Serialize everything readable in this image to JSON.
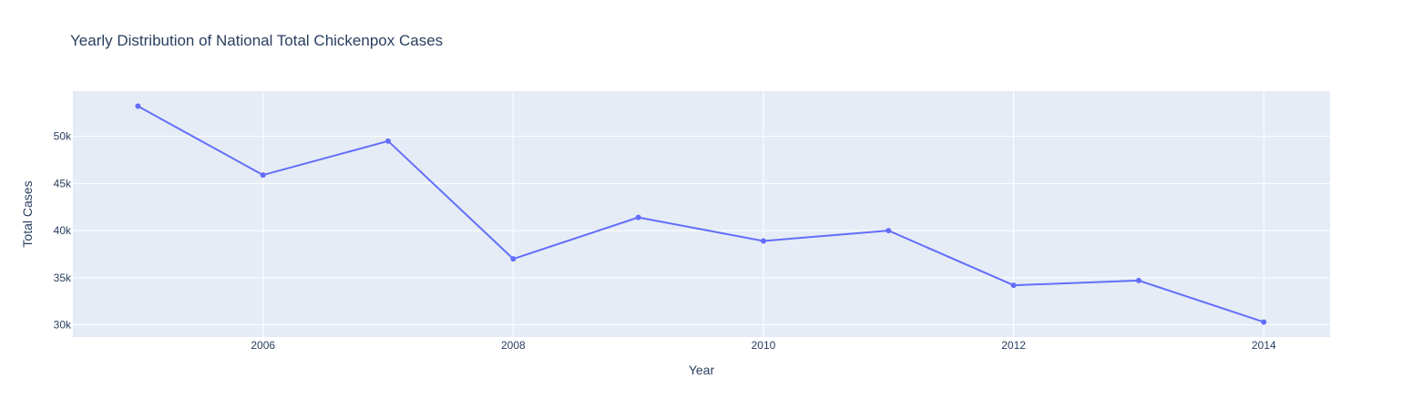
{
  "chart_data": {
    "type": "line",
    "title": "Yearly Distribution of National Total Chickenpox Cases",
    "xlabel": "Year",
    "ylabel": "Total Cases",
    "x": [
      2005,
      2006,
      2007,
      2008,
      2009,
      2010,
      2011,
      2012,
      2013,
      2014
    ],
    "series": [
      {
        "values": [
          53200,
          45900,
          49500,
          37000,
          41400,
          38900,
          40000,
          34200,
          34700,
          30300
        ]
      }
    ],
    "xlim": [
      2004.48,
      2014.53
    ],
    "ylim": [
      28700,
      54800
    ],
    "xticks": [
      2006,
      2008,
      2010,
      2012,
      2014
    ],
    "xtick_labels": [
      "2006",
      "2008",
      "2010",
      "2012",
      "2014"
    ],
    "yticks": [
      30000,
      35000,
      40000,
      45000,
      50000
    ],
    "ytick_labels": [
      "30k",
      "35k",
      "40k",
      "45k",
      "50k"
    ],
    "grid": true,
    "legend": false,
    "colors": {
      "line": "#636efa",
      "plot_bg": "#e5ecf6",
      "grid": "#ffffff",
      "text": "#2a3f5f"
    }
  }
}
